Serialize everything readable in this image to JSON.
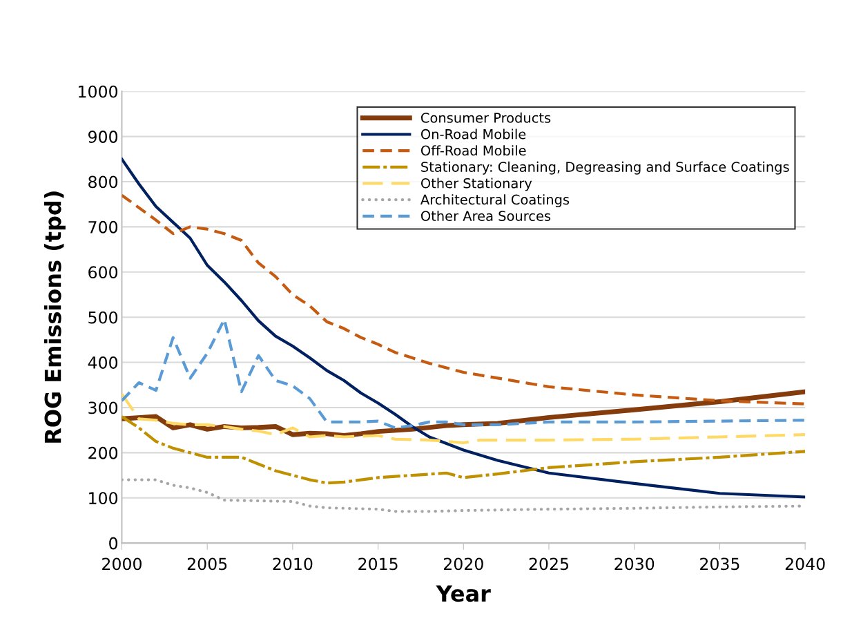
{
  "chart_data": {
    "type": "line",
    "xlabel": "Year",
    "ylabel": "ROG Emissions (tpd)",
    "xlim": [
      2000,
      2040
    ],
    "xticks": [
      2000,
      2005,
      2010,
      2015,
      2020,
      2025,
      2030,
      2035,
      2040
    ],
    "ylim": [
      0,
      1000
    ],
    "yticks": [
      0,
      100,
      200,
      300,
      400,
      500,
      600,
      700,
      800,
      900,
      1000
    ],
    "grid": "y",
    "legend": "top right",
    "marker": "none",
    "series": [
      {
        "name": "Consumer Products",
        "color": "#843c0c",
        "line_style": "solid",
        "x": [
          2000,
          2002,
          2003,
          2004,
          2005,
          2006,
          2007,
          2008,
          2009,
          2010,
          2011,
          2012,
          2013,
          2014,
          2015,
          2017,
          2019,
          2020,
          2022,
          2025,
          2030,
          2035,
          2040
        ],
        "values": [
          275,
          280,
          255,
          262,
          252,
          258,
          255,
          256,
          258,
          240,
          243,
          242,
          238,
          242,
          247,
          252,
          260,
          262,
          265,
          278,
          295,
          313,
          335
        ]
      },
      {
        "name": "On-Road Mobile",
        "color": "#002060",
        "line_style": "solid",
        "x": [
          2000,
          2001,
          2002,
          2003,
          2004,
          2005,
          2006,
          2007,
          2008,
          2009,
          2010,
          2011,
          2012,
          2013,
          2014,
          2015,
          2016,
          2017,
          2018,
          2020,
          2022,
          2025,
          2030,
          2035,
          2040
        ],
        "values": [
          850,
          795,
          745,
          710,
          675,
          615,
          578,
          537,
          492,
          458,
          436,
          410,
          382,
          360,
          332,
          310,
          285,
          258,
          235,
          206,
          183,
          155,
          132,
          110,
          102
        ]
      },
      {
        "name": "Off-Road Mobile",
        "color": "#c55a11",
        "line_style": "dashed",
        "x": [
          2000,
          2002,
          2003,
          2004,
          2005,
          2006,
          2007,
          2008,
          2009,
          2010,
          2011,
          2012,
          2013,
          2014,
          2015,
          2016,
          2017,
          2018,
          2019,
          2020,
          2025,
          2030,
          2035,
          2040
        ],
        "values": [
          770,
          715,
          685,
          700,
          695,
          685,
          670,
          620,
          590,
          550,
          525,
          490,
          475,
          455,
          440,
          422,
          410,
          398,
          388,
          378,
          346,
          328,
          315,
          308
        ]
      },
      {
        "name": "Stationary: Cleaning, Degreasing and Surface Coatings",
        "color": "#bf9000",
        "line_style": "dashdot",
        "x": [
          2000,
          2001,
          2002,
          2003,
          2004,
          2005,
          2006,
          2007,
          2008,
          2009,
          2010,
          2011,
          2012,
          2013,
          2014,
          2015,
          2017,
          2019,
          2020,
          2022,
          2025,
          2030,
          2035,
          2040
        ],
        "values": [
          280,
          255,
          225,
          210,
          200,
          190,
          190,
          190,
          175,
          160,
          150,
          140,
          133,
          135,
          140,
          145,
          150,
          155,
          145,
          153,
          167,
          180,
          190,
          203
        ]
      },
      {
        "name": "Other Stationary",
        "color": "#ffd966",
        "line_style": "longdash",
        "x": [
          2000,
          2001,
          2002,
          2003,
          2004,
          2005,
          2006,
          2007,
          2008,
          2009,
          2010,
          2011,
          2012,
          2013,
          2015,
          2016,
          2018,
          2020,
          2021,
          2025,
          2030,
          2035,
          2040
        ],
        "values": [
          330,
          275,
          272,
          265,
          262,
          262,
          258,
          252,
          248,
          240,
          255,
          235,
          238,
          235,
          238,
          230,
          228,
          222,
          228,
          228,
          230,
          235,
          240
        ]
      },
      {
        "name": "Architectural Coatings",
        "color": "#a6a6a6",
        "line_style": "dotted",
        "x": [
          2000,
          2002,
          2003,
          2004,
          2005,
          2006,
          2010,
          2011,
          2012,
          2015,
          2016,
          2018,
          2020,
          2025,
          2030,
          2035,
          2040
        ],
        "values": [
          140,
          140,
          128,
          122,
          112,
          95,
          92,
          82,
          78,
          75,
          70,
          70,
          72,
          75,
          77,
          80,
          82
        ]
      },
      {
        "name": "Other Area Sources",
        "color": "#5b9bd5",
        "line_style": "dashed",
        "x": [
          2000,
          2001,
          2002,
          2003,
          2004,
          2005,
          2006,
          2007,
          2008,
          2009,
          2010,
          2011,
          2012,
          2013,
          2014,
          2015,
          2016,
          2017,
          2018,
          2019,
          2020,
          2022,
          2025,
          2030,
          2035,
          2040
        ],
        "values": [
          315,
          355,
          338,
          455,
          365,
          420,
          495,
          335,
          415,
          360,
          348,
          320,
          268,
          268,
          268,
          270,
          255,
          260,
          268,
          268,
          262,
          262,
          268,
          268,
          270,
          272
        ]
      }
    ]
  }
}
